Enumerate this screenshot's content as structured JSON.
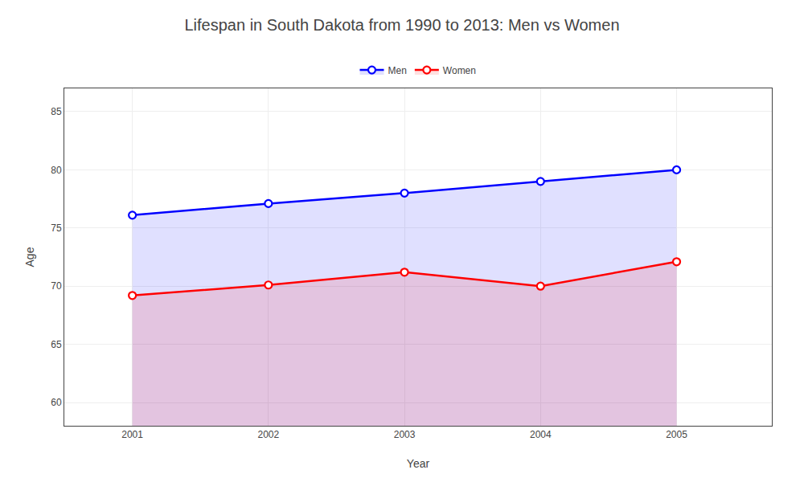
{
  "chart_data": {
    "type": "area",
    "title": "Lifespan in South Dakota from 1990 to 2013: Men vs Women",
    "xlabel": "Year",
    "ylabel": "Age",
    "x": [
      2001,
      2002,
      2003,
      2004,
      2005
    ],
    "series": [
      {
        "name": "Men",
        "color": "#0000FF",
        "values": [
          76.1,
          77.1,
          78.0,
          79.0,
          80.0
        ]
      },
      {
        "name": "Women",
        "color": "#FF0000",
        "values": [
          69.2,
          70.1,
          71.2,
          70.0,
          72.1
        ]
      }
    ],
    "xlim": [
      2000.5,
      2005.7
    ],
    "xticks": [
      2001,
      2002,
      2003,
      2004,
      2005
    ],
    "ylim": [
      58,
      87
    ],
    "yticks": [
      60,
      65,
      70,
      75,
      80,
      85
    ],
    "grid": true,
    "legend": "top",
    "marker": "circle"
  }
}
